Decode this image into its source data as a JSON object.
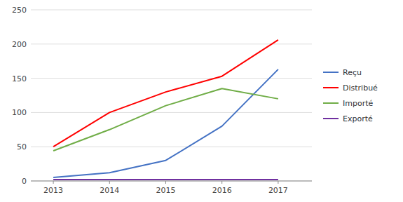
{
  "chart_data": {
    "type": "line",
    "x": [
      2013,
      2014,
      2015,
      2016,
      2017
    ],
    "series": [
      {
        "name": "Reçu",
        "color": "#4472C4",
        "values": [
          5,
          12,
          30,
          80,
          163
        ]
      },
      {
        "name": "Distribué",
        "color": "#FF0000",
        "values": [
          50,
          100,
          130,
          153,
          206
        ]
      },
      {
        "name": "Importé",
        "color": "#70AD47",
        "values": [
          44,
          75,
          110,
          135,
          120
        ]
      },
      {
        "name": "Exporté",
        "color": "#7030A0",
        "values": [
          2,
          2,
          2,
          2,
          2
        ]
      }
    ],
    "xlim": [
      2012.6,
      2017.6
    ],
    "xticks": [
      2013,
      2014,
      2015,
      2016,
      2017
    ],
    "ylim": [
      0,
      250
    ],
    "yticks": [
      0,
      50,
      100,
      150,
      200,
      250
    ],
    "grid": true,
    "legend": "right"
  }
}
